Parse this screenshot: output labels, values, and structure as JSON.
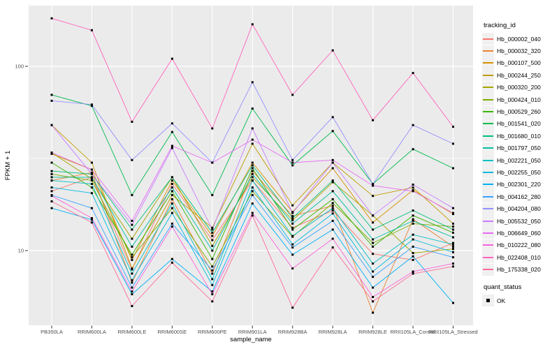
{
  "figure": {
    "background": "#FFFFFF",
    "panel_background": "#EBEBEB",
    "gridline_color": "#FFFFFF",
    "point_color": "#000000",
    "tick_mark_color": "#333333",
    "axis_text_color": "#4D4D4D",
    "axis_title_color": "#000000"
  },
  "chart_data": {
    "type": "line",
    "title": "",
    "xlabel": "sample_name",
    "ylabel": "FPKM + 1",
    "y_scale": "log10",
    "y_ticks": [
      100,
      10
    ],
    "y_minor_gridlines": [
      31.62
    ],
    "ylim": [
      3.9,
      213
    ],
    "grid": true,
    "legend_position": "right",
    "point_shape": "filled-square",
    "categories": [
      "PB350LA",
      "RRIM600LA",
      "RRIM600LE",
      "RRIM600SE",
      "RRIM600PE",
      "RRIM901LA",
      "RRIM928BA",
      "RRIM928LA",
      "RRIM928LE",
      "RRII105LA_Control",
      "RRII105LA_Stressed"
    ],
    "series": [
      {
        "name": "Hb_000002_040",
        "color": "#F8766D",
        "values": [
          21,
          25,
          7.9,
          23,
          11.4,
          24,
          13.3,
          16.5,
          9.6,
          8.9,
          11
        ]
      },
      {
        "name": "Hb_000032_320",
        "color": "#EA8331",
        "values": [
          24,
          26.5,
          6.7,
          19,
          7.5,
          27,
          15.4,
          17.5,
          4.6,
          14.8,
          10.5
        ]
      },
      {
        "name": "Hb_000107_500",
        "color": "#D89000",
        "values": [
          33.5,
          27.5,
          8.9,
          24,
          12,
          30,
          16.2,
          28,
          14.2,
          21.3,
          15.8
        ]
      },
      {
        "name": "Hb_000244_250",
        "color": "#C09B00",
        "values": [
          48,
          30,
          8,
          20,
          13.3,
          38,
          17.6,
          30,
          19.8,
          22,
          14
        ]
      },
      {
        "name": "Hb_000320_200",
        "color": "#A3A500",
        "values": [
          34,
          24.5,
          11.6,
          25,
          10.6,
          25,
          14.6,
          23.5,
          15.5,
          9.7,
          10.2
        ]
      },
      {
        "name": "Hb_000424_010",
        "color": "#7CAE00",
        "values": [
          26,
          24,
          9.2,
          17,
          8.2,
          21,
          11.9,
          18.1,
          11,
          14,
          13.5
        ]
      },
      {
        "name": "Hb_000529_260",
        "color": "#39B600",
        "values": [
          30,
          22,
          9.5,
          21,
          9,
          28,
          13,
          19,
          10.5,
          15.5,
          12.5
        ]
      },
      {
        "name": "Hb_001541_020",
        "color": "#00BB4E",
        "values": [
          70,
          61,
          20,
          44,
          20,
          59,
          29,
          44.5,
          23,
          35.5,
          28
        ]
      },
      {
        "name": "Hb_001680_010",
        "color": "#00BF7D",
        "values": [
          27,
          26,
          13,
          25,
          12.5,
          29,
          15,
          24,
          13,
          16.5,
          13
        ]
      },
      {
        "name": "Hb_001797_050",
        "color": "#00C1A3",
        "values": [
          25,
          25,
          10.5,
          22,
          10,
          26,
          14,
          21,
          11.5,
          14.5,
          11.8
        ]
      },
      {
        "name": "Hb_002221_050",
        "color": "#00BFC4",
        "values": [
          24,
          23,
          7.5,
          18,
          7,
          24,
          12,
          17,
          8.5,
          12.2,
          10.8
        ]
      },
      {
        "name": "Hb_002255_050",
        "color": "#00BAE0",
        "values": [
          22,
          20.5,
          6.9,
          16,
          6.5,
          22,
          10.8,
          15.9,
          7.7,
          11.5,
          9.8
        ]
      },
      {
        "name": "Hb_002301_220",
        "color": "#00B0F6",
        "values": [
          17,
          14.7,
          5.8,
          9,
          6,
          18,
          9.5,
          13,
          6.3,
          9.3,
          5.2
        ]
      },
      {
        "name": "Hb_004162_280",
        "color": "#35A2FF",
        "values": [
          20,
          17,
          6.3,
          14,
          7.8,
          20,
          10.4,
          14.5,
          7.2,
          10.5,
          9.2
        ]
      },
      {
        "name": "Hb_004204_080",
        "color": "#9590FF",
        "values": [
          65,
          62,
          31,
          49,
          30,
          82,
          31,
          53,
          23,
          48,
          38
        ]
      },
      {
        "name": "Hb_005532_050",
        "color": "#C77CFF",
        "values": [
          48,
          26,
          13.8,
          36,
          13,
          46,
          16,
          30,
          15.5,
          22.8,
          17
        ]
      },
      {
        "name": "Hb_006649_060",
        "color": "#E76BF3",
        "values": [
          34,
          27.5,
          14.5,
          37,
          30,
          40,
          30,
          31,
          22.5,
          21,
          16
        ]
      },
      {
        "name": "Hb_010222_080",
        "color": "#FA62DB",
        "values": [
          19.8,
          15,
          6,
          13.5,
          5.8,
          16,
          8,
          11.6,
          5.6,
          7.7,
          8.5
        ]
      },
      {
        "name": "Hb_022408_010",
        "color": "#FF62BC",
        "values": [
          182,
          157,
          50,
          110,
          46,
          169,
          70,
          122,
          51,
          92,
          47
        ]
      },
      {
        "name": "Hb_175338_020",
        "color": "#FF6A98",
        "values": [
          18.5,
          14.2,
          5,
          8.6,
          5.3,
          15.5,
          4.9,
          10.4,
          5.3,
          7.5,
          8.2
        ]
      }
    ]
  },
  "legend": {
    "title": "tracking_id"
  },
  "quant_legend": {
    "title": "quant_status",
    "items": [
      {
        "label": "OK"
      }
    ]
  }
}
